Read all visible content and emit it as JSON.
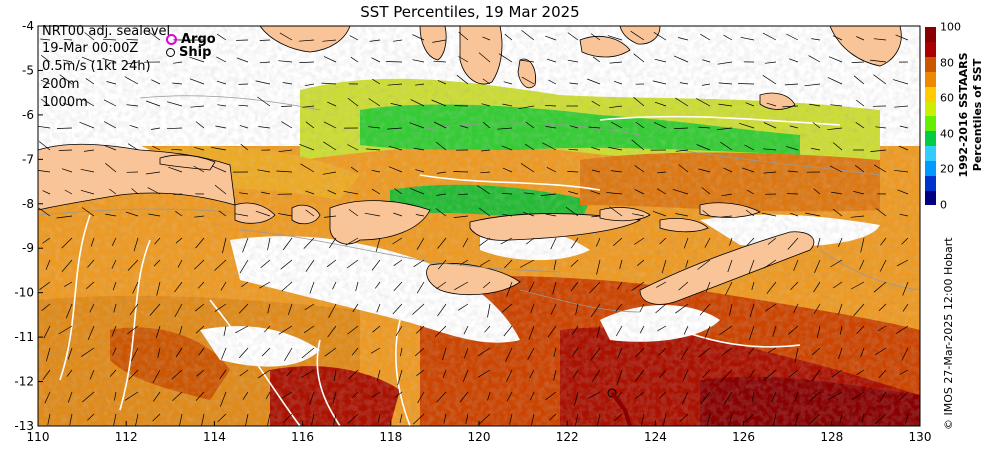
{
  "title": "SST Percentiles, 19 Mar 2025",
  "info_lines": [
    "NRT00 adj. sealevel",
    "19-Mar 00:00Z",
    "0.5m/s (1kt 24h)",
    "200m",
    "1000m"
  ],
  "legend": {
    "argo": {
      "label": "Argo",
      "color": "#e000e0"
    },
    "ship": {
      "label": "Ship",
      "color": "#000000"
    }
  },
  "axes": {
    "x_range": [
      110,
      130
    ],
    "y_range": [
      -13,
      -4
    ],
    "x_ticks": [
      "110",
      "112",
      "114",
      "116",
      "118",
      "120",
      "122",
      "124",
      "126",
      "128",
      "130"
    ],
    "y_ticks": [
      "-4",
      "-5",
      "-6",
      "-7",
      "-8",
      "-9",
      "-10",
      "-11",
      "-12",
      "-13"
    ]
  },
  "colorbar": {
    "title_line1": "1992-2016 SSTAARS",
    "title_line2": "Percentiles of SST",
    "range": [
      0,
      100
    ],
    "ticks": [
      "0",
      "20",
      "40",
      "60",
      "80",
      "100"
    ],
    "colors": [
      "#000080",
      "#0033cc",
      "#0099ff",
      "#33ccff",
      "#00cc44",
      "#66ee00",
      "#ccee00",
      "#ffcc00",
      "#ee8800",
      "#cc5500",
      "#aa0000",
      "#880000"
    ]
  },
  "credit": "© IMOS 27-Mar-2025 12:00 Hobart",
  "colors": {
    "land": "#f9c497",
    "missing": "#ffffff"
  }
}
